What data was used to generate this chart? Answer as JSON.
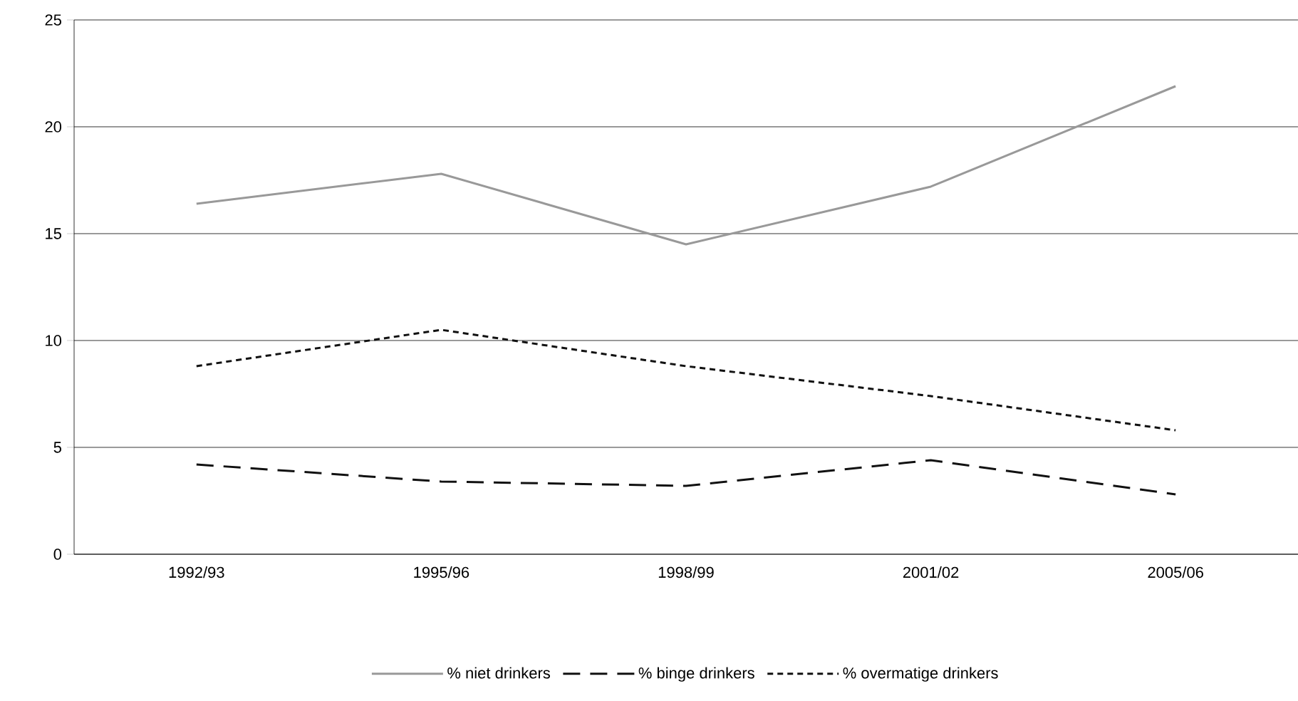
{
  "chart_data": {
    "type": "line",
    "categories": [
      "1992/93",
      "1995/96",
      "1998/99",
      "2001/02",
      "2005/06"
    ],
    "series": [
      {
        "name": "% niet drinkers",
        "color": "#999999",
        "line_style": "solid",
        "values": [
          16.4,
          17.8,
          14.5,
          17.2,
          21.9
        ]
      },
      {
        "name": "% binge drinkers",
        "color": "#111111",
        "line_style": "dashed",
        "values": [
          4.2,
          3.4,
          3.2,
          4.4,
          2.8
        ]
      },
      {
        "name": "% overmatige drinkers",
        "color": "#111111",
        "line_style": "dotted",
        "values": [
          8.8,
          10.5,
          8.8,
          7.4,
          5.8
        ]
      }
    ],
    "ylim": [
      0,
      25
    ],
    "yticks": [
      0,
      5,
      10,
      15,
      20,
      25
    ],
    "grid": "y",
    "legend": "bottom",
    "marker": "none"
  }
}
